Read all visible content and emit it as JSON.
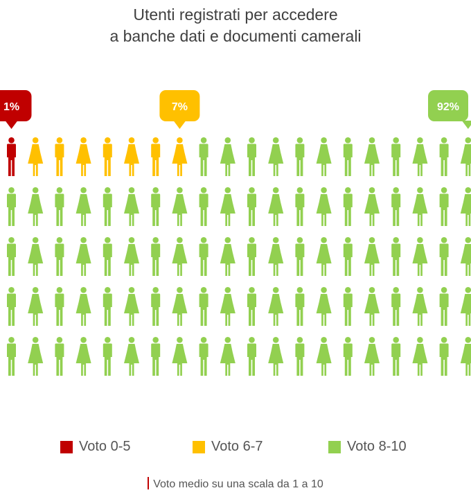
{
  "title_line1": "Utenti registrati per accedere",
  "title_line2": "a banche dati e documenti camerali",
  "colors": {
    "red": "#c00000",
    "orange": "#ffc000",
    "green": "#92d050"
  },
  "chart_data": {
    "type": "pictogram",
    "title": "Utenti registrati per accedere a banche dati e documenti camerali",
    "total_icons": 100,
    "categories": [
      "Voto 0-5",
      "Voto 6-7",
      "Voto 8-10"
    ],
    "values": [
      1,
      7,
      92
    ],
    "value_labels": [
      "1%",
      "7%",
      "92%"
    ],
    "unit": "%"
  },
  "legend": [
    {
      "label": "Voto 0-5",
      "color": "#c00000"
    },
    {
      "label": "Voto 6-7",
      "color": "#ffc000"
    },
    {
      "label": "Voto 8-10",
      "color": "#92d050"
    }
  ],
  "note": "Voto medio su una scala da 1 a 10"
}
